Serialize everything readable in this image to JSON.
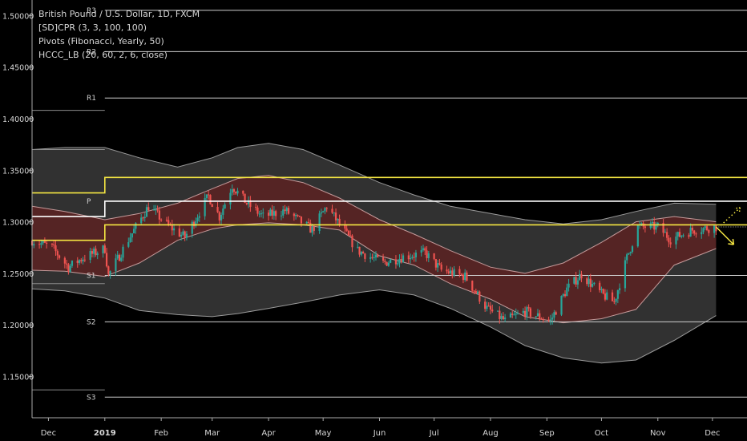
{
  "legend": {
    "symbol_line": "British Pound / U.S. Dollar, 1D, FXCM",
    "indicator_1": "[SD]CPR (3, 3, 100, 100)",
    "indicator_2": "Pivots (Fibonacci, Yearly, 50)",
    "indicator_3": "HCCC_LB (20, 60, 2, 6, close)"
  },
  "colors": {
    "background": "#000000",
    "bull": "#26a69a",
    "bear": "#ef5350",
    "pivot_line": "#d0d0d0",
    "cpr_line": "#f5e642",
    "outer_band": "#3a3a3a",
    "inner_band": "#5a2323",
    "text": "#d8d8d8"
  },
  "chart_data": {
    "type": "candlestick",
    "y_ticks": [
      "1.15000",
      "1.20000",
      "1.25000",
      "1.30000",
      "1.35000",
      "1.40000",
      "1.45000",
      "1.50000"
    ],
    "y_range": [
      1.11,
      1.515
    ],
    "x_ticks": [
      "Dec",
      "2019",
      "Feb",
      "Mar",
      "Apr",
      "May",
      "Jun",
      "Jul",
      "Aug",
      "Sep",
      "Oct",
      "Nov",
      "Dec"
    ],
    "x_range": [
      "2018-11-22",
      "2019-12-20"
    ],
    "pivot_levels": [
      {
        "label": "R3",
        "value": 1.505
      },
      {
        "label": "R2",
        "value": 1.465
      },
      {
        "label": "R1",
        "value": 1.42
      },
      {
        "label": "P",
        "value": 1.32
      },
      {
        "label": "S1",
        "value": 1.248
      },
      {
        "label": "S2",
        "value": 1.203
      },
      {
        "label": "S3",
        "value": 1.13
      }
    ],
    "previous_year_pivot_levels": [
      1.408,
      1.37,
      1.24,
      1.137
    ],
    "cpr": {
      "top": [
        {
          "date": "2018-11-22",
          "value": 1.328
        },
        {
          "date": "2019-01-01",
          "value": 1.328
        },
        {
          "date": "2019-01-01",
          "value": 1.343
        },
        {
          "date": "2019-12-20",
          "value": 1.343
        }
      ],
      "pivot": [
        {
          "date": "2018-11-22",
          "value": 1.305
        },
        {
          "date": "2019-01-01",
          "value": 1.305
        },
        {
          "date": "2019-01-01",
          "value": 1.32
        },
        {
          "date": "2019-12-20",
          "value": 1.32
        }
      ],
      "bottom": [
        {
          "date": "2018-11-22",
          "value": 1.282
        },
        {
          "date": "2019-01-01",
          "value": 1.282
        },
        {
          "date": "2019-01-01",
          "value": 1.297
        },
        {
          "date": "2019-12-20",
          "value": 1.297
        }
      ]
    },
    "last_price": 1.295,
    "outer_band": {
      "dates": [
        "2018-11-22",
        "2018-12-10",
        "2019-01-01",
        "2019-01-20",
        "2019-02-10",
        "2019-03-01",
        "2019-03-15",
        "2019-04-01",
        "2019-04-20",
        "2019-05-10",
        "2019-06-01",
        "2019-06-20",
        "2019-07-10",
        "2019-08-01",
        "2019-08-20",
        "2019-09-10",
        "2019-10-01",
        "2019-10-20",
        "2019-11-10",
        "2019-12-03"
      ],
      "upper": [
        1.37,
        1.372,
        1.372,
        1.362,
        1.353,
        1.362,
        1.372,
        1.376,
        1.37,
        1.355,
        1.338,
        1.326,
        1.315,
        1.308,
        1.302,
        1.298,
        1.302,
        1.31,
        1.318,
        1.317
      ],
      "lower": [
        1.235,
        1.233,
        1.226,
        1.214,
        1.21,
        1.208,
        1.211,
        1.216,
        1.222,
        1.229,
        1.234,
        1.229,
        1.216,
        1.198,
        1.18,
        1.168,
        1.163,
        1.166,
        1.185,
        1.209
      ]
    },
    "inner_band": {
      "dates": [
        "2018-11-22",
        "2018-12-10",
        "2019-01-01",
        "2019-01-20",
        "2019-02-10",
        "2019-03-01",
        "2019-03-15",
        "2019-04-01",
        "2019-04-20",
        "2019-05-10",
        "2019-06-01",
        "2019-06-20",
        "2019-07-10",
        "2019-08-01",
        "2019-08-20",
        "2019-09-10",
        "2019-10-01",
        "2019-10-20",
        "2019-11-10",
        "2019-12-03"
      ],
      "upper": [
        1.315,
        1.31,
        1.302,
        1.308,
        1.318,
        1.332,
        1.342,
        1.345,
        1.338,
        1.323,
        1.302,
        1.288,
        1.272,
        1.256,
        1.25,
        1.26,
        1.28,
        1.3,
        1.305,
        1.3
      ],
      "lower": [
        1.253,
        1.252,
        1.247,
        1.26,
        1.282,
        1.293,
        1.297,
        1.299,
        1.297,
        1.292,
        1.267,
        1.258,
        1.24,
        1.225,
        1.208,
        1.202,
        1.206,
        1.215,
        1.258,
        1.274
      ]
    },
    "close_path": [
      [
        "2018-11-22",
        1.282
      ],
      [
        "2018-12-03",
        1.275
      ],
      [
        "2018-12-12",
        1.256
      ],
      [
        "2018-12-20",
        1.265
      ],
      [
        "2019-01-01",
        1.274
      ],
      [
        "2019-01-03",
        1.248
      ],
      [
        "2019-01-15",
        1.286
      ],
      [
        "2019-01-25",
        1.315
      ],
      [
        "2019-02-05",
        1.296
      ],
      [
        "2019-02-14",
        1.285
      ],
      [
        "2019-02-27",
        1.325
      ],
      [
        "2019-03-05",
        1.305
      ],
      [
        "2019-03-12",
        1.335
      ],
      [
        "2019-03-20",
        1.318
      ],
      [
        "2019-03-29",
        1.305
      ],
      [
        "2019-04-10",
        1.311
      ],
      [
        "2019-04-25",
        1.292
      ],
      [
        "2019-05-03",
        1.315
      ],
      [
        "2019-05-20",
        1.272
      ],
      [
        "2019-06-03",
        1.26
      ],
      [
        "2019-06-14",
        1.266
      ],
      [
        "2019-06-26",
        1.27
      ],
      [
        "2019-07-05",
        1.253
      ],
      [
        "2019-07-18",
        1.247
      ],
      [
        "2019-07-30",
        1.216
      ],
      [
        "2019-08-09",
        1.204
      ],
      [
        "2019-08-20",
        1.213
      ],
      [
        "2019-09-03",
        1.204
      ],
      [
        "2019-09-12",
        1.235
      ],
      [
        "2019-09-20",
        1.249
      ],
      [
        "2019-10-01",
        1.23
      ],
      [
        "2019-10-08",
        1.222
      ],
      [
        "2019-10-15",
        1.265
      ],
      [
        "2019-10-21",
        1.295
      ],
      [
        "2019-11-01",
        1.295
      ],
      [
        "2019-11-08",
        1.283
      ],
      [
        "2019-11-20",
        1.292
      ],
      [
        "2019-12-03",
        1.295
      ]
    ]
  }
}
